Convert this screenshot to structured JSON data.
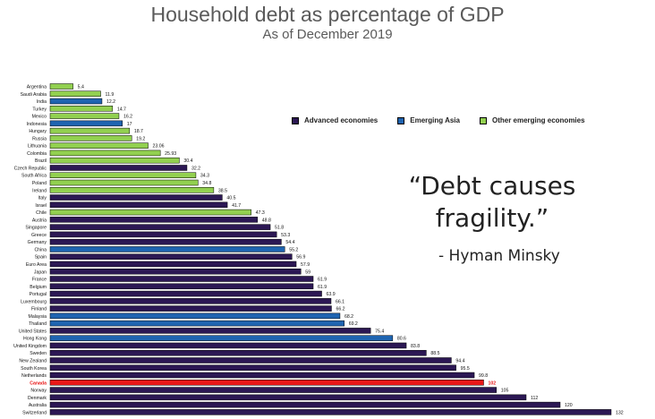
{
  "header": {
    "title": "Household debt as percentage of GDP",
    "subtitle": "As of December 2019"
  },
  "quote": {
    "line1": "“Debt causes",
    "line2": "fragility.”",
    "author": "- Hyman Minsky"
  },
  "colors": {
    "advanced": "#2c1854",
    "emerging_asia": "#1f64b0",
    "other_emerging": "#92d050",
    "highlight": "#e81818"
  },
  "chart_data": {
    "type": "bar",
    "orientation": "horizontal",
    "title": "Household debt as percentage of GDP",
    "subtitle": "As of December 2019",
    "legend": {
      "placement": "top-right",
      "entries": [
        {
          "name": "Advanced economies",
          "group": "advanced"
        },
        {
          "name": "Emerging Asia",
          "group": "emerging_asia"
        },
        {
          "name": "Other emerging economies",
          "group": "other_emerging"
        }
      ]
    },
    "xlim": [
      0,
      132
    ],
    "grid": false,
    "bars": [
      {
        "category": "Argentina",
        "label": "5.4",
        "value": 5.4,
        "group": "other_emerging"
      },
      {
        "category": "Saudi Arabia",
        "label": "11.9",
        "value": 11.9,
        "group": "other_emerging"
      },
      {
        "category": "India",
        "label": "12.2",
        "value": 12.2,
        "group": "emerging_asia"
      },
      {
        "category": "Turkey",
        "label": "14.7",
        "value": 14.7,
        "group": "other_emerging"
      },
      {
        "category": "Mexico",
        "label": "16.2",
        "value": 16.2,
        "group": "other_emerging"
      },
      {
        "category": "Indonesia",
        "label": "17",
        "value": 17,
        "group": "emerging_asia"
      },
      {
        "category": "Hungary",
        "label": "18.7",
        "value": 18.7,
        "group": "other_emerging"
      },
      {
        "category": "Russia",
        "label": "19.2",
        "value": 19.2,
        "group": "other_emerging"
      },
      {
        "category": "Lithuania",
        "label": "23.06",
        "value": 23.06,
        "group": "other_emerging"
      },
      {
        "category": "Colombia",
        "label": "25.93",
        "value": 25.93,
        "group": "other_emerging"
      },
      {
        "category": "Brazil",
        "label": "30.4",
        "value": 30.4,
        "group": "other_emerging"
      },
      {
        "category": "Czech Republic",
        "label": "32.2",
        "value": 32.2,
        "group": "advanced"
      },
      {
        "category": "South Africa",
        "label": "34.3",
        "value": 34.3,
        "group": "other_emerging"
      },
      {
        "category": "Poland",
        "label": "34.8",
        "value": 34.8,
        "group": "other_emerging"
      },
      {
        "category": "Ireland",
        "label": "38.5",
        "value": 38.5,
        "group": "other_emerging"
      },
      {
        "category": "Italy",
        "label": "40.5",
        "value": 40.5,
        "group": "advanced"
      },
      {
        "category": "Israel",
        "label": "41.7",
        "value": 41.7,
        "group": "advanced"
      },
      {
        "category": "Chile",
        "label": "47.3",
        "value": 47.3,
        "group": "other_emerging"
      },
      {
        "category": "Austria",
        "label": "48.8",
        "value": 48.8,
        "group": "advanced"
      },
      {
        "category": "Singapore",
        "label": "51.8",
        "value": 51.8,
        "group": "advanced"
      },
      {
        "category": "Greece",
        "label": "53.3",
        "value": 53.3,
        "group": "advanced"
      },
      {
        "category": "Germany",
        "label": "54.4",
        "value": 54.4,
        "group": "advanced"
      },
      {
        "category": "China",
        "label": "55.2",
        "value": 55.2,
        "group": "emerging_asia"
      },
      {
        "category": "Spain",
        "label": "56.9",
        "value": 56.9,
        "group": "advanced"
      },
      {
        "category": "Euro Area",
        "label": "57.9",
        "value": 57.9,
        "group": "advanced"
      },
      {
        "category": "Japan",
        "label": "59",
        "value": 59,
        "group": "advanced"
      },
      {
        "category": "France",
        "label": "61.9",
        "value": 61.9,
        "group": "advanced"
      },
      {
        "category": "Belgium",
        "label": "61.9",
        "value": 61.9,
        "group": "advanced"
      },
      {
        "category": "Portugal",
        "label": "63.9",
        "value": 63.9,
        "group": "advanced"
      },
      {
        "category": "Luxembourg",
        "label": "66.1",
        "value": 66.1,
        "group": "advanced"
      },
      {
        "category": "Finland",
        "label": "66.2",
        "value": 66.2,
        "group": "advanced"
      },
      {
        "category": "Malaysia",
        "label": "68.2",
        "value": 68.2,
        "group": "emerging_asia"
      },
      {
        "category": "Thailand",
        "label": "69.2",
        "value": 69.2,
        "group": "emerging_asia"
      },
      {
        "category": "United States",
        "label": "75.4",
        "value": 75.4,
        "group": "advanced"
      },
      {
        "category": "Hong Kong",
        "label": "80.6",
        "value": 80.6,
        "group": "emerging_asia"
      },
      {
        "category": "United Kingdom",
        "label": "83.8",
        "value": 83.8,
        "group": "advanced"
      },
      {
        "category": "Sweden",
        "label": "88.5",
        "value": 88.5,
        "group": "advanced"
      },
      {
        "category": "New Zealand",
        "label": "94.4",
        "value": 94.4,
        "group": "advanced"
      },
      {
        "category": "South Korea",
        "label": "95.5",
        "value": 95.5,
        "group": "advanced"
      },
      {
        "category": "Netherlands",
        "label": "99.8",
        "value": 99.8,
        "group": "advanced"
      },
      {
        "category": "Canada",
        "label": "102",
        "value": 102,
        "group": "highlight"
      },
      {
        "category": "Norway",
        "label": "105",
        "value": 105,
        "group": "advanced"
      },
      {
        "category": "Denmark",
        "label": "112",
        "value": 112,
        "group": "advanced"
      },
      {
        "category": "Australia",
        "label": "120",
        "value": 120,
        "group": "advanced"
      },
      {
        "category": "Switzerland",
        "label": "132",
        "value": 132,
        "group": "advanced"
      }
    ]
  }
}
